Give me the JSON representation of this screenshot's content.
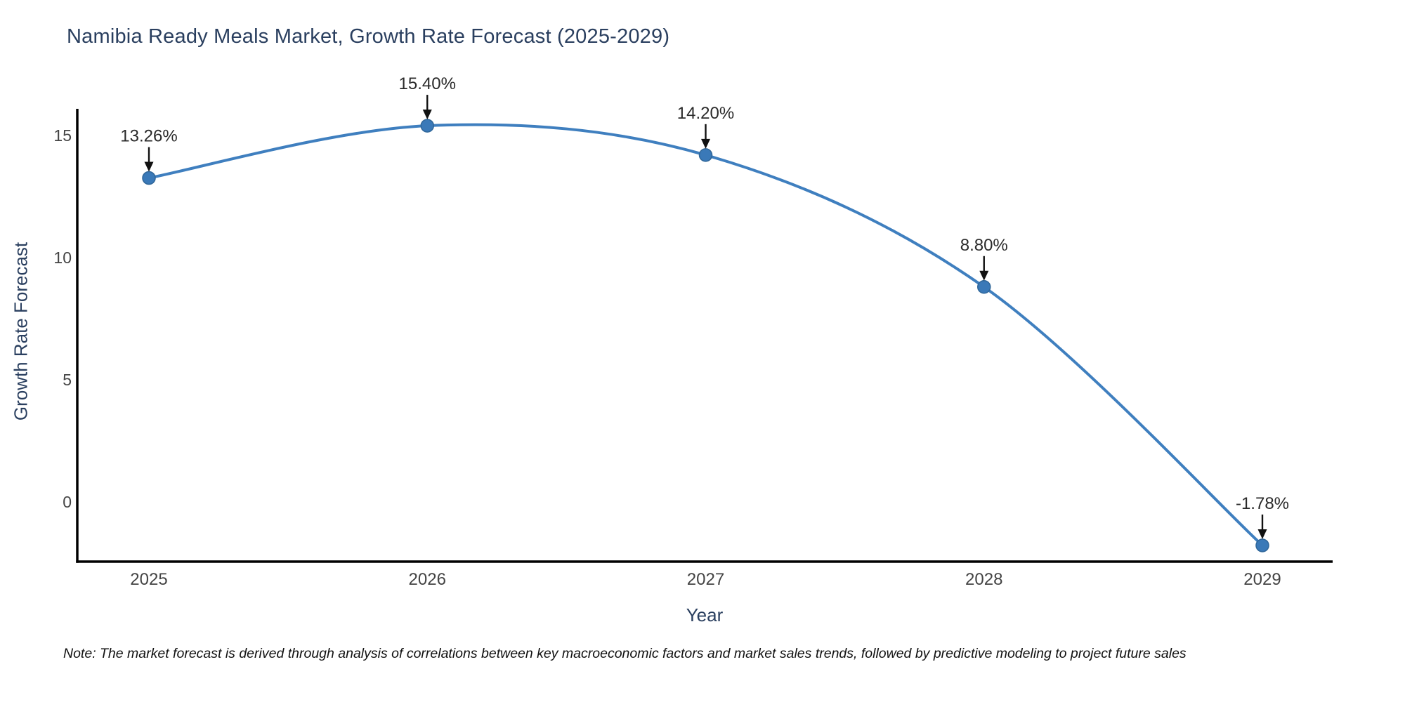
{
  "chart_data": {
    "type": "line",
    "title": "Namibia Ready Meals Market, Growth Rate Forecast (2025-2029)",
    "xlabel": "Year",
    "ylabel": "Growth Rate Forecast",
    "categories": [
      "2025",
      "2026",
      "2027",
      "2028",
      "2029"
    ],
    "series": [
      {
        "name": "Growth Rate Forecast",
        "values": [
          13.26,
          15.4,
          14.2,
          8.8,
          -1.78
        ],
        "point_labels": [
          "13.26%",
          "15.40%",
          "14.20%",
          "8.80%",
          "-1.78%"
        ]
      }
    ],
    "yticks": [
      15,
      10,
      5,
      0
    ],
    "ylim": [
      -2.5,
      16.7
    ],
    "grid": false,
    "legend": "none",
    "line_shape": "spline",
    "annotations_have_arrows": true,
    "colors": {
      "line": "#3f7fbf",
      "marker_fill": "#3a79b8",
      "marker_edge": "#2f6699",
      "axis_line": "#000000",
      "tick_label": "#444444",
      "axis_title": "#2a3f5f",
      "chart_title": "#2a3f5f",
      "annotation_text": "#2a2a2a",
      "annotation_arrow": "#111111",
      "background": "#ffffff"
    }
  },
  "note": "Note: The market forecast is derived through analysis of correlations between key macroeconomic factors and market sales trends, followed by predictive modeling to project future sales"
}
